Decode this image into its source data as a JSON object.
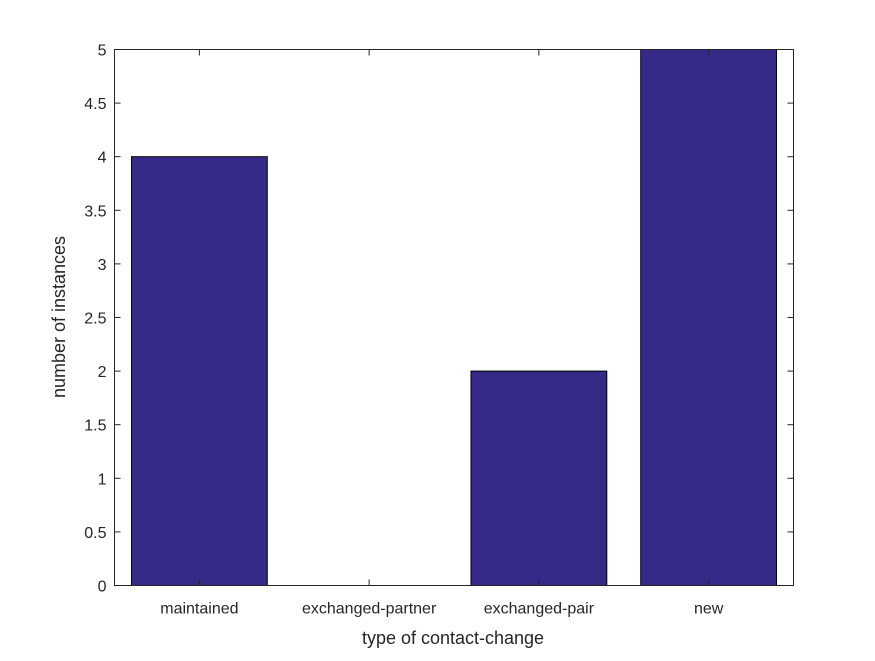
{
  "chart_data": {
    "type": "bar",
    "categories": [
      "maintained",
      "exchanged-partner",
      "exchanged-pair",
      "new"
    ],
    "values": [
      4,
      0,
      2,
      5
    ],
    "title": "",
    "xlabel": "type of contact-change",
    "ylabel": "number of instances",
    "ylim": [
      0,
      5
    ],
    "yticks": [
      "0",
      "0.5",
      "1",
      "1.5",
      "2",
      "2.5",
      "3",
      "3.5",
      "4",
      "4.5",
      "5"
    ],
    "grid": false,
    "bar_color": "#352a87",
    "bar_edge_color": "#000000"
  }
}
